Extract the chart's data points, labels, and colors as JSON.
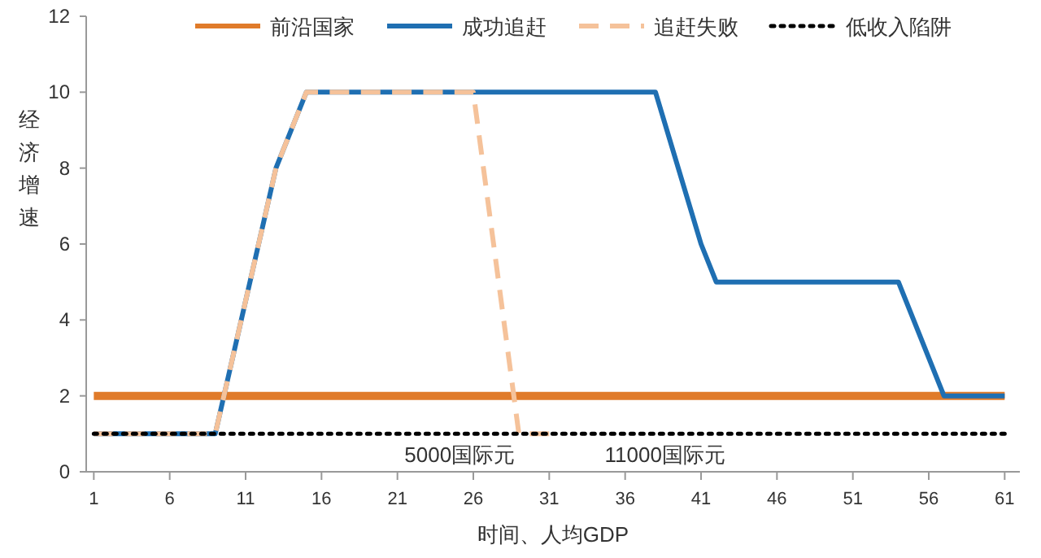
{
  "chart_data": {
    "type": "line",
    "xlabel": "时间、人均GDP",
    "ylabel": "经济增速",
    "xlim": [
      0.5,
      62
    ],
    "xticks": [
      1,
      6,
      11,
      16,
      21,
      26,
      31,
      36,
      41,
      46,
      51,
      56,
      61
    ],
    "ylim": [
      0,
      12
    ],
    "yticks": [
      0,
      2,
      4,
      6,
      8,
      10,
      12
    ],
    "grid": false,
    "legend": "top",
    "series": [
      {
        "name": "前沿国家",
        "color": "#e07b2a",
        "line_style": "solid",
        "x": [
          1,
          61
        ],
        "values": [
          2,
          2
        ]
      },
      {
        "name": "成功追赶",
        "color": "#1f6fb2",
        "line_style": "solid",
        "x": [
          1,
          9,
          13,
          15,
          38,
          41,
          42,
          54,
          57,
          61
        ],
        "values": [
          1,
          1,
          8,
          10,
          10,
          6,
          5,
          5,
          2,
          2
        ]
      },
      {
        "name": "追赶失败",
        "color": "#f5c29a",
        "line_style": "dashed",
        "x": [
          1,
          9,
          13,
          15,
          26,
          29,
          31
        ],
        "values": [
          1,
          1,
          8,
          10,
          10,
          1,
          1
        ]
      },
      {
        "name": "低收入陷阱",
        "color": "#000000",
        "line_style": "dotted",
        "x": [
          1,
          61
        ],
        "values": [
          1,
          1
        ]
      }
    ],
    "annotations": [
      "5000国际元",
      "11000国际元"
    ]
  }
}
